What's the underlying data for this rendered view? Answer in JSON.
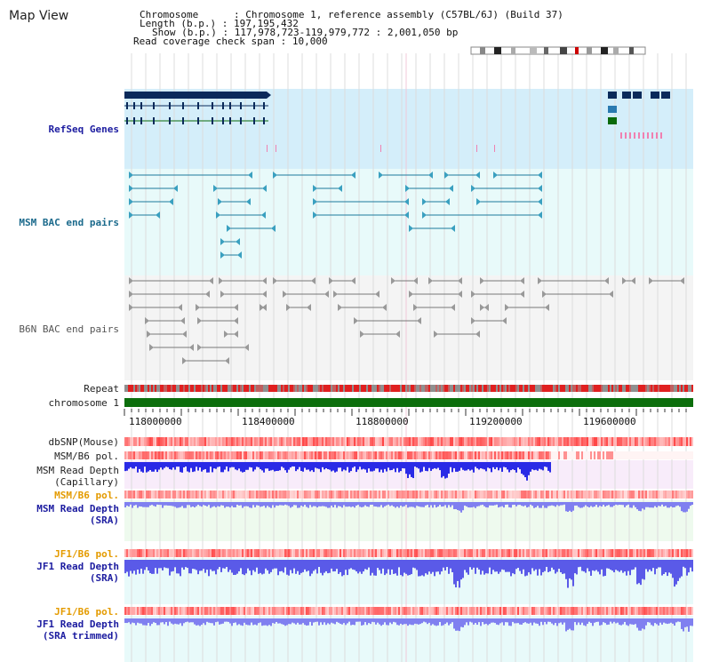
{
  "title": "Map View",
  "info": {
    "chromosome_label": "Chromosome",
    "chromosome_value": "Chromosome 1, reference assembly (C57BL/6J) (Build 37)",
    "length_label": "Length (b.p.)",
    "length_value": "197,195,432",
    "show_label": "Show (b.p.)",
    "show_value": "117,978,723-119,979,772 : 2,001,050 bp",
    "coverage_label": "Read coverage check span",
    "coverage_value": "10,000"
  },
  "tracks": {
    "refseq": "RefSeq Genes",
    "msm_bac": "MSM BAC end pairs",
    "b6n_bac": "B6N BAC end pairs",
    "repeat": "Repeat",
    "chromosome": "chromosome 1",
    "dbsnp": "dbSNP(Mouse)",
    "msm_b6_pol_1": "MSM/B6 pol.",
    "msm_read_depth_cap_1": "MSM Read Depth",
    "msm_read_depth_cap_2": "(Capillary)",
    "msm_b6_pol_2": "MSM/B6 pol.",
    "msm_read_depth_sra_1": "MSM Read Depth",
    "msm_read_depth_sra_2": "(SRA)",
    "jf1_b6_pol_1": "JF1/B6 pol.",
    "jf1_read_depth_1": "JF1 Read Depth",
    "jf1_read_depth_2": "(SRA)",
    "jf1_b6_pol_2": "JF1/B6 pol.",
    "jf1_read_depth_trim_1": "JF1 Read Depth",
    "jf1_read_depth_trim_2": "(SRA trimmed)"
  },
  "axis": {
    "ticks": [
      "118000000",
      "118400000",
      "118800000",
      "119200000",
      "119600000"
    ]
  },
  "colors": {
    "refseq_bg": "#d4eefa",
    "bac_bg": "#e8fafa",
    "gray_bg": "#f4f4f4",
    "chrom_green": "#0c6e0c",
    "depth_blue": "#2a2ae6",
    "depth_light": "#8080f0"
  }
}
